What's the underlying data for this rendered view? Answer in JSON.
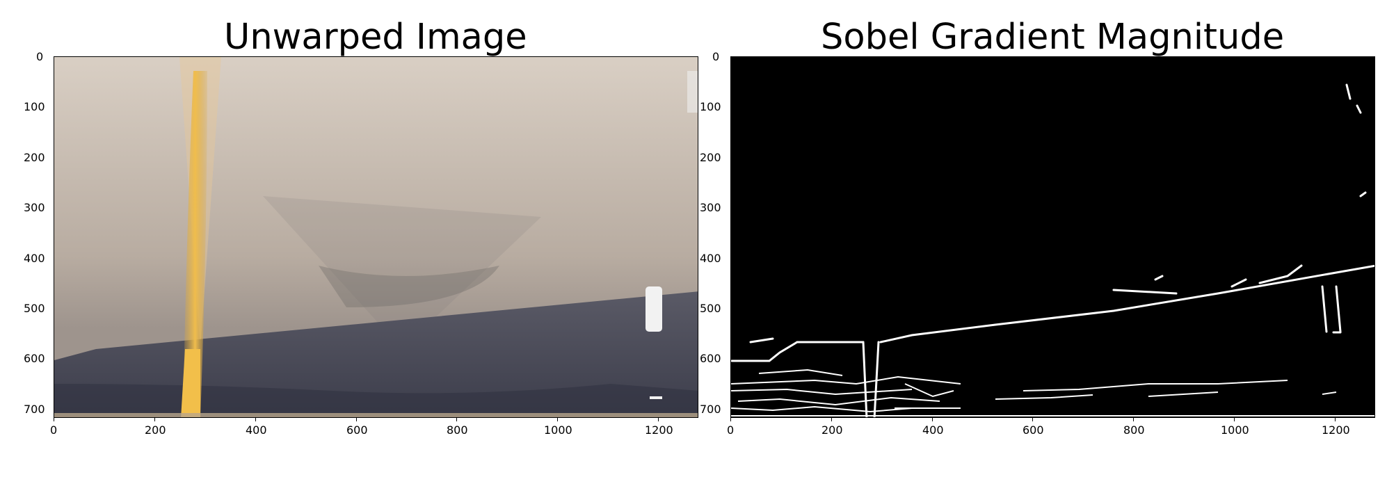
{
  "panels": [
    {
      "title": "Unwarped Image",
      "x_ticks": [
        "0",
        "200",
        "400",
        "600",
        "800",
        "1000",
        "1200"
      ],
      "y_ticks": [
        "0",
        "100",
        "200",
        "300",
        "400",
        "500",
        "600",
        "700"
      ]
    },
    {
      "title": "Sobel Gradient Magnitude",
      "x_ticks": [
        "0",
        "200",
        "400",
        "600",
        "800",
        "1000",
        "1200"
      ],
      "y_ticks": [
        "0",
        "100",
        "200",
        "300",
        "400",
        "500",
        "600",
        "700"
      ]
    }
  ],
  "colors": {
    "lane_yellow": "#e8b94a",
    "road_upper": "#c9bdb0",
    "road_lower": "#4c4e5c",
    "edge_white": "#ffffff",
    "edge_bg": "#000000"
  }
}
